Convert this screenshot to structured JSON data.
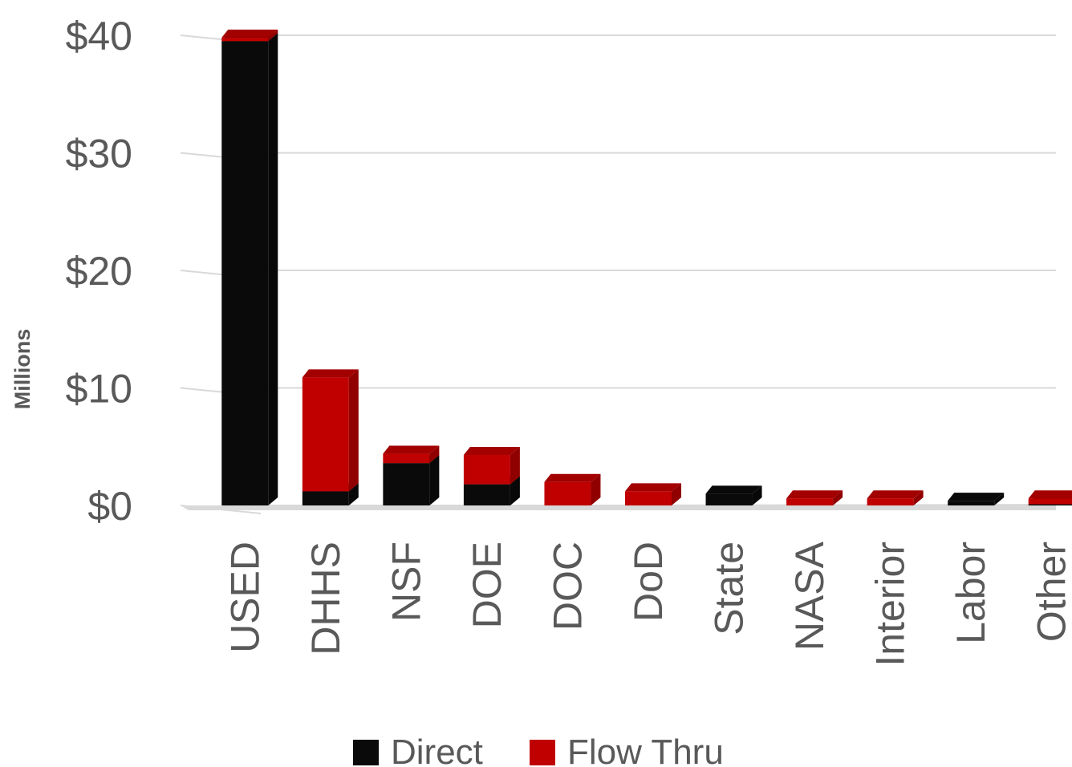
{
  "chart_data": {
    "type": "bar",
    "stacked": true,
    "three_d": true,
    "categories": [
      "USED",
      "DHHS",
      "NSF",
      "DOE",
      "DOC",
      "DoD",
      "State",
      "NASA",
      "Interior",
      "Labor",
      "Other"
    ],
    "series": [
      {
        "name": "Direct",
        "color": "#0a0a0a",
        "values": [
          39.5,
          1.2,
          3.6,
          1.8,
          0,
          0,
          1.0,
          0,
          0,
          0.4,
          0.1
        ]
      },
      {
        "name": "Flow Thru",
        "color": "#c00000",
        "values": [
          0.3,
          9.7,
          0.8,
          2.5,
          2.0,
          1.2,
          0,
          0.6,
          0.6,
          0,
          0.5
        ]
      }
    ],
    "ylabel": "Millions",
    "y_ticks": [
      "$0",
      "$10",
      "$20",
      "$30",
      "$40"
    ],
    "y_tick_values": [
      0,
      10,
      20,
      30,
      40
    ],
    "ylim": [
      0,
      40
    ],
    "grid": true,
    "legend": "bottom"
  }
}
